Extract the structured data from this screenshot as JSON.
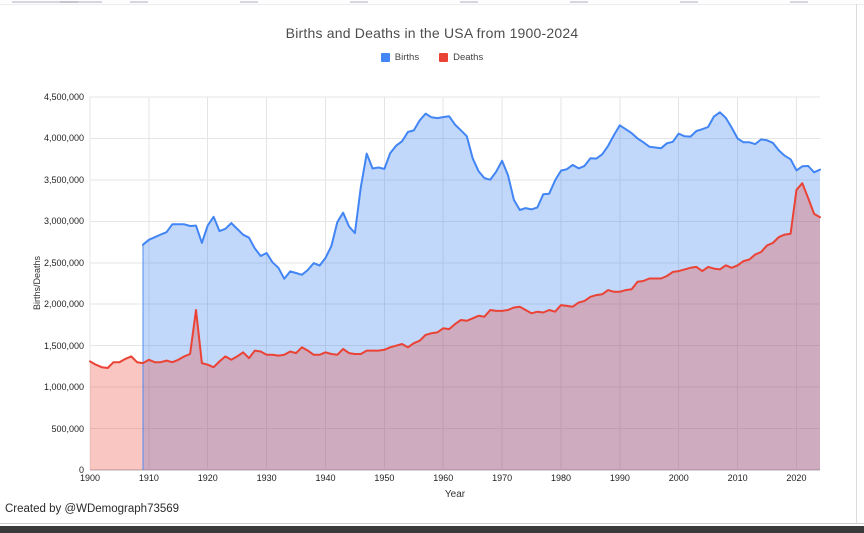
{
  "watermark": {
    "text": "Created by @WDemograph73569"
  },
  "chart_data": {
    "type": "area",
    "title": "Births and Deaths in the USA from 1900-2024",
    "xlabel": "Year",
    "ylabel": "Births/Deaths",
    "grid": true,
    "legend_position": "top",
    "ylim": [
      0,
      4500000
    ],
    "x_ticks": [
      1900,
      1910,
      1920,
      1930,
      1940,
      1950,
      1960,
      1970,
      1980,
      1990,
      2000,
      2010,
      2020
    ],
    "y_ticks": {
      "values": [
        0,
        500000,
        1000000,
        1500000,
        2000000,
        2500000,
        3000000,
        3500000,
        4000000,
        4500000
      ],
      "labels": [
        "0",
        "500,000",
        "1,000,000",
        "1,500,000",
        "2,000,000",
        "2,500,000",
        "3,000,000",
        "3,500,000",
        "4,000,000",
        "4,500,000"
      ]
    },
    "x": [
      1900,
      1901,
      1902,
      1903,
      1904,
      1905,
      1906,
      1907,
      1908,
      1909,
      1910,
      1911,
      1912,
      1913,
      1914,
      1915,
      1916,
      1917,
      1918,
      1919,
      1920,
      1921,
      1922,
      1923,
      1924,
      1925,
      1926,
      1927,
      1928,
      1929,
      1930,
      1931,
      1932,
      1933,
      1934,
      1935,
      1936,
      1937,
      1938,
      1939,
      1940,
      1941,
      1942,
      1943,
      1944,
      1945,
      1946,
      1947,
      1948,
      1949,
      1950,
      1951,
      1952,
      1953,
      1954,
      1955,
      1956,
      1957,
      1958,
      1959,
      1960,
      1961,
      1962,
      1963,
      1964,
      1965,
      1966,
      1967,
      1968,
      1969,
      1970,
      1971,
      1972,
      1973,
      1974,
      1975,
      1976,
      1977,
      1978,
      1979,
      1980,
      1981,
      1982,
      1983,
      1984,
      1985,
      1986,
      1987,
      1988,
      1989,
      1990,
      1991,
      1992,
      1993,
      1994,
      1995,
      1996,
      1997,
      1998,
      1999,
      2000,
      2001,
      2002,
      2003,
      2004,
      2005,
      2006,
      2007,
      2008,
      2009,
      2010,
      2011,
      2012,
      2013,
      2014,
      2015,
      2016,
      2017,
      2018,
      2019,
      2020,
      2021,
      2022,
      2023,
      2024
    ],
    "series": [
      {
        "name": "Births",
        "color": "#4285F4",
        "fill": "rgba(66,133,244,0.32)",
        "values": [
          null,
          null,
          null,
          null,
          null,
          null,
          null,
          null,
          null,
          2718000,
          2777000,
          2809000,
          2840000,
          2869000,
          2966000,
          2965000,
          2964000,
          2944000,
          2948000,
          2740000,
          2950000,
          3055000,
          2882000,
          2910000,
          2979000,
          2909000,
          2839000,
          2802000,
          2674000,
          2582000,
          2618000,
          2506000,
          2440000,
          2307000,
          2396000,
          2377000,
          2355000,
          2413000,
          2496000,
          2466000,
          2559000,
          2703000,
          2989000,
          3104000,
          2939000,
          2858000,
          3411000,
          3817000,
          3637000,
          3649000,
          3632000,
          3823000,
          3913000,
          3965000,
          4078000,
          4097000,
          4218000,
          4300000,
          4255000,
          4245000,
          4258000,
          4268000,
          4167000,
          4098000,
          4027000,
          3760000,
          3606000,
          3521000,
          3502000,
          3600000,
          3731000,
          3556000,
          3258000,
          3137000,
          3160000,
          3144000,
          3168000,
          3327000,
          3333000,
          3494000,
          3612000,
          3629000,
          3681000,
          3639000,
          3669000,
          3761000,
          3757000,
          3809000,
          3910000,
          4041000,
          4158000,
          4111000,
          4065000,
          4000000,
          3953000,
          3900000,
          3891000,
          3881000,
          3942000,
          3959000,
          4059000,
          4026000,
          4022000,
          4090000,
          4112000,
          4138000,
          4266000,
          4316000,
          4248000,
          4131000,
          3999000,
          3954000,
          3953000,
          3932000,
          3988000,
          3978000,
          3946000,
          3856000,
          3792000,
          3748000,
          3614000,
          3664000,
          3668000,
          3591000,
          3623000
        ]
      },
      {
        "name": "Deaths",
        "color": "#EA4335",
        "fill": "rgba(234,67,53,0.30)",
        "values": [
          1310000,
          1270000,
          1240000,
          1230000,
          1300000,
          1300000,
          1340000,
          1370000,
          1300000,
          1290000,
          1330000,
          1300000,
          1300000,
          1320000,
          1300000,
          1330000,
          1370000,
          1400000,
          1930000,
          1290000,
          1270000,
          1240000,
          1310000,
          1370000,
          1330000,
          1370000,
          1420000,
          1350000,
          1440000,
          1430000,
          1390000,
          1390000,
          1380000,
          1390000,
          1430000,
          1410000,
          1480000,
          1440000,
          1390000,
          1390000,
          1420000,
          1400000,
          1390000,
          1460000,
          1410000,
          1400000,
          1400000,
          1440000,
          1440000,
          1440000,
          1450000,
          1480000,
          1500000,
          1520000,
          1480000,
          1530000,
          1560000,
          1630000,
          1650000,
          1660000,
          1710000,
          1700000,
          1760000,
          1810000,
          1800000,
          1830000,
          1860000,
          1850000,
          1930000,
          1920000,
          1920000,
          1930000,
          1960000,
          1970000,
          1930000,
          1890000,
          1910000,
          1900000,
          1930000,
          1910000,
          1990000,
          1980000,
          1970000,
          2020000,
          2040000,
          2090000,
          2110000,
          2120000,
          2170000,
          2150000,
          2150000,
          2170000,
          2180000,
          2270000,
          2280000,
          2310000,
          2310000,
          2310000,
          2340000,
          2390000,
          2400000,
          2420000,
          2440000,
          2450000,
          2400000,
          2450000,
          2430000,
          2420000,
          2470000,
          2440000,
          2470000,
          2520000,
          2540000,
          2600000,
          2630000,
          2710000,
          2740000,
          2810000,
          2840000,
          2850000,
          3380000,
          3460000,
          3280000,
          3090000,
          3050000
        ]
      }
    ]
  }
}
